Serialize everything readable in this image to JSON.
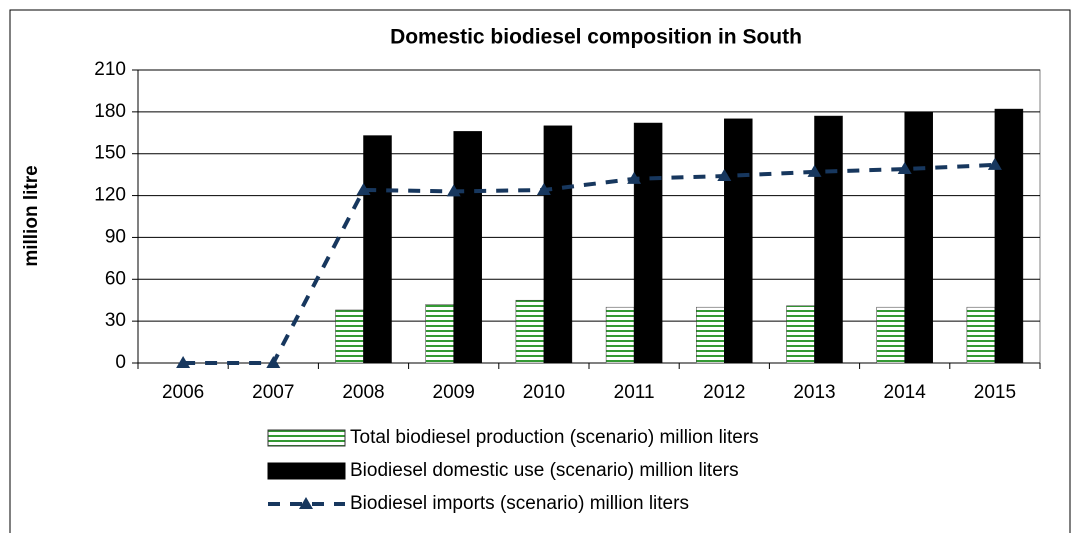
{
  "chart_data": {
    "type": "bar",
    "title": "Domestic biodiesel composition in South",
    "y_label": "million litre",
    "categories": [
      "2006",
      "2007",
      "2008",
      "2009",
      "2010",
      "2011",
      "2012",
      "2013",
      "2014",
      "2015"
    ],
    "series": [
      {
        "name": "Total biodiesel production (scenario) million liters",
        "color": "#339933",
        "values": [
          null,
          null,
          38,
          42,
          45,
          40,
          40,
          41,
          40,
          40
        ]
      },
      {
        "name": "Biodiesel domestic use (scenario) million liters",
        "color": "#000000",
        "values": [
          null,
          null,
          163,
          166,
          170,
          172,
          175,
          177,
          180,
          182
        ]
      },
      {
        "name": "Biodiesel imports (scenario) million liters",
        "color": "#17375e",
        "type": "line",
        "values": [
          0,
          0,
          124,
          123,
          124,
          132,
          134,
          137,
          139,
          142
        ]
      }
    ],
    "ylim": [
      0,
      210
    ],
    "yticks": [
      0,
      30,
      60,
      90,
      120,
      150,
      180,
      210
    ],
    "grid": true,
    "legend": "bottom"
  }
}
